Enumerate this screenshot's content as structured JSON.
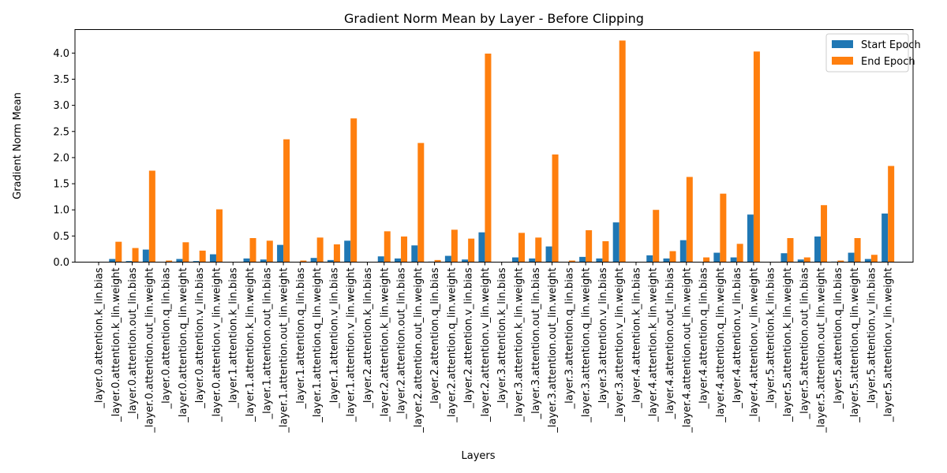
{
  "chart_data": {
    "type": "bar",
    "title": "Gradient Norm Mean by Layer - Before Clipping",
    "xlabel": "Layers",
    "ylabel": "Gradient Norm Mean",
    "ylim": [
      0,
      4.45
    ],
    "yticks": [
      "0.0",
      "0.5",
      "1.0",
      "1.5",
      "2.0",
      "2.5",
      "3.0",
      "3.5",
      "4.0"
    ],
    "legend_position": "top-right",
    "grid": false,
    "categories": [
      "_layer.0.attention.k_lin.bias",
      "_layer.0.attention.k_lin.weight",
      "_layer.0.attention.out_lin.bias",
      "_layer.0.attention.out_lin.weight",
      "_layer.0.attention.q_lin.bias",
      "_layer.0.attention.q_lin.weight",
      "_layer.0.attention.v_lin.bias",
      "_layer.0.attention.v_lin.weight",
      "_layer.1.attention.k_lin.bias",
      "_layer.1.attention.k_lin.weight",
      "_layer.1.attention.out_lin.bias",
      "_layer.1.attention.out_lin.weight",
      "_layer.1.attention.q_lin.bias",
      "_layer.1.attention.q_lin.weight",
      "_layer.1.attention.v_lin.bias",
      "_layer.1.attention.v_lin.weight",
      "_layer.2.attention.k_lin.bias",
      "_layer.2.attention.k_lin.weight",
      "_layer.2.attention.out_lin.bias",
      "_layer.2.attention.out_lin.weight",
      "_layer.2.attention.q_lin.bias",
      "_layer.2.attention.q_lin.weight",
      "_layer.2.attention.v_lin.bias",
      "_layer.2.attention.v_lin.weight",
      "_layer.3.attention.k_lin.bias",
      "_layer.3.attention.k_lin.weight",
      "_layer.3.attention.out_lin.bias",
      "_layer.3.attention.out_lin.weight",
      "_layer.3.attention.q_lin.bias",
      "_layer.3.attention.q_lin.weight",
      "_layer.3.attention.v_lin.bias",
      "_layer.3.attention.v_lin.weight",
      "_layer.4.attention.k_lin.bias",
      "_layer.4.attention.k_lin.weight",
      "_layer.4.attention.out_lin.bias",
      "_layer.4.attention.out_lin.weight",
      "_layer.4.attention.q_lin.bias",
      "_layer.4.attention.q_lin.weight",
      "_layer.4.attention.v_lin.bias",
      "_layer.4.attention.v_lin.weight",
      "_layer.5.attention.k_lin.bias",
      "_layer.5.attention.k_lin.weight",
      "_layer.5.attention.out_lin.bias",
      "_layer.5.attention.out_lin.weight",
      "_layer.5.attention.q_lin.bias",
      "_layer.5.attention.q_lin.weight",
      "_layer.5.attention.v_lin.bias",
      "_layer.5.attention.v_lin.weight"
    ],
    "series": [
      {
        "name": "Start Epoch",
        "color": "#1f77b4",
        "values": [
          0.0,
          0.06,
          0.02,
          0.24,
          0.0,
          0.06,
          0.02,
          0.15,
          0.0,
          0.07,
          0.05,
          0.33,
          0.0,
          0.08,
          0.04,
          0.41,
          0.0,
          0.11,
          0.07,
          0.32,
          0.01,
          0.12,
          0.05,
          0.57,
          0.0,
          0.09,
          0.07,
          0.3,
          0.0,
          0.1,
          0.07,
          0.76,
          0.0,
          0.13,
          0.07,
          0.42,
          0.0,
          0.18,
          0.09,
          0.91,
          0.0,
          0.17,
          0.05,
          0.49,
          0.01,
          0.18,
          0.06,
          0.93
        ]
      },
      {
        "name": "End Epoch",
        "color": "#ff7f0e",
        "values": [
          0.0,
          0.39,
          0.27,
          1.75,
          0.03,
          0.38,
          0.22,
          1.01,
          0.0,
          0.46,
          0.41,
          2.35,
          0.03,
          0.47,
          0.34,
          2.75,
          0.0,
          0.59,
          0.49,
          2.28,
          0.04,
          0.62,
          0.45,
          3.99,
          0.0,
          0.56,
          0.47,
          2.06,
          0.03,
          0.61,
          0.4,
          4.24,
          0.0,
          1.0,
          0.21,
          1.63,
          0.09,
          1.31,
          0.35,
          4.03,
          0.0,
          0.46,
          0.09,
          1.09,
          0.03,
          0.46,
          0.14,
          1.84
        ]
      }
    ]
  }
}
